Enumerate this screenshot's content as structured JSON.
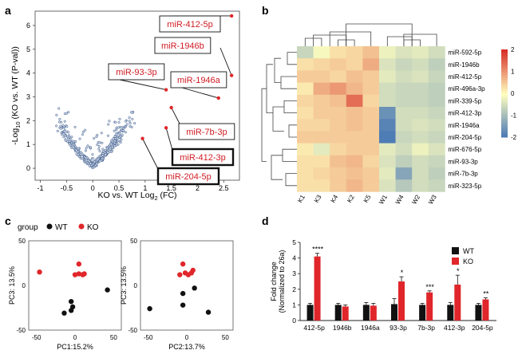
{
  "panels": {
    "a": {
      "letter": "a",
      "chart_data": {
        "type": "scatter",
        "xlabel": "KO vs. WT Log",
        "xlabel_sub": "2",
        "xlabel_suffix": " (FC)",
        "ylabel_prefix": "-Log",
        "ylabel_sub": "10",
        "ylabel_suffix": " (KO vs. WT (P-val))",
        "xlim": [
          -1.1,
          2.8
        ],
        "ylim": [
          -0.5,
          6.6
        ],
        "xticks": [
          "-1",
          "-0.5",
          "0",
          "0.5",
          "1",
          "1.5",
          "2",
          "2.5"
        ],
        "xtick_values": [
          -1,
          -0.5,
          0,
          0.5,
          1,
          1.5,
          2,
          2.5
        ],
        "yticks": [
          "0",
          "1",
          "2",
          "3",
          "4",
          "5",
          "6"
        ],
        "ytick_values": [
          0,
          1,
          2,
          3,
          4,
          5,
          6
        ],
        "highlighted": [
          {
            "label": "miR-412-5p",
            "x": 2.65,
            "y": 6.4,
            "boxed": false
          },
          {
            "label": "miR-1946b",
            "x": 2.65,
            "y": 3.9,
            "boxed": false
          },
          {
            "label": "miR-93-3p",
            "x": 1.4,
            "y": 3.3,
            "boxed": false
          },
          {
            "label": "miR-1946a",
            "x": 2.4,
            "y": 2.95,
            "boxed": false
          },
          {
            "label": "miR-7b-3p",
            "x": 1.5,
            "y": 2.55,
            "boxed": false
          },
          {
            "label": "miR-412-3p",
            "x": 1.4,
            "y": 1.7,
            "boxed": true
          },
          {
            "label": "miR-204-5p",
            "x": 0.95,
            "y": 1.25,
            "boxed": true
          }
        ]
      }
    },
    "b": {
      "letter": "b",
      "chart_data": {
        "type": "heatmap",
        "columns": [
          "K1",
          "K3",
          "K4",
          "K2",
          "K5",
          "W1",
          "W4",
          "W2",
          "W3"
        ],
        "rows": [
          "miR-592-5p",
          "miR-1946b",
          "miR-412-5p",
          "miR-496a-3p",
          "miR-339-5p",
          "miR-412-3p",
          "miR-1946a",
          "miR-204-5p",
          "miR-676-5p",
          "miR-93-3p",
          "miR-7b-3p",
          "miR-323-5p"
        ],
        "values": [
          [
            -0.6,
            -0.1,
            0.3,
            0.4,
            0.6,
            -0.2,
            -0.4,
            -0.3,
            -0.5
          ],
          [
            0.3,
            0.4,
            0.5,
            0.4,
            0.8,
            -0.4,
            -0.6,
            -0.5,
            -0.7
          ],
          [
            0.5,
            0.5,
            0.4,
            0.6,
            0.5,
            -0.3,
            -0.5,
            -0.4,
            -0.6
          ],
          [
            0.2,
            0.8,
            1.0,
            0.7,
            0.5,
            -0.5,
            -0.6,
            -0.6,
            -0.7
          ],
          [
            0.4,
            0.5,
            0.6,
            1.4,
            0.4,
            -0.5,
            -0.6,
            -0.6,
            -0.7
          ],
          [
            0.3,
            0.5,
            0.5,
            0.6,
            0.5,
            -1.6,
            -0.5,
            -0.5,
            -0.6
          ],
          [
            0.4,
            0.4,
            0.5,
            0.6,
            0.5,
            -1.8,
            -0.5,
            -0.4,
            -0.5
          ],
          [
            0.5,
            0.5,
            0.5,
            0.5,
            0.5,
            -1.9,
            -0.6,
            -0.5,
            -0.6
          ],
          [
            0.2,
            -0.3,
            0.4,
            0.5,
            0.5,
            -0.3,
            -0.5,
            -0.2,
            -0.4
          ],
          [
            0.3,
            0.3,
            0.6,
            0.7,
            0.4,
            -0.4,
            -0.7,
            -0.5,
            -0.6
          ],
          [
            0.3,
            0.4,
            0.5,
            0.6,
            0.5,
            -0.3,
            -1.3,
            -0.5,
            -0.7
          ],
          [
            0.3,
            0.3,
            0.5,
            0.7,
            0.5,
            -0.4,
            -0.8,
            -0.5,
            -0.6
          ]
        ],
        "scale_ticks": [
          "2",
          "1",
          "0",
          "-1",
          "-2"
        ],
        "scale_values": [
          2,
          1,
          0,
          -1,
          -2
        ],
        "scale_colors": {
          "high": "#d73027",
          "mid": "#ffffbf",
          "low": "#4575b4"
        }
      }
    },
    "c": {
      "letter": "c",
      "legend_title": "group",
      "legend": [
        {
          "label": "WT",
          "color": "#111111"
        },
        {
          "label": "KO",
          "color": "#e0262a"
        }
      ],
      "chart_data": [
        {
          "type": "scatter",
          "xlabel": "PC1:15.2%",
          "ylabel": "PC3: 13.5%",
          "xlim": [
            -60,
            60
          ],
          "ylim": [
            -50,
            50
          ],
          "xticks": [
            "-50",
            "0",
            "50"
          ],
          "xtick_values": [
            -50,
            0,
            50
          ],
          "yticks": [
            "50",
            "0",
            "-50"
          ],
          "ytick_values": [
            50,
            0,
            -50
          ],
          "series": [
            {
              "name": "WT",
              "points": [
                [
                  -5,
                  -28
                ],
                [
                  -14,
                  -31
                ],
                [
                  -5,
                  -18
                ],
                [
                  -3,
                  -24
                ],
                [
                  42,
                  -5
                ]
              ]
            },
            {
              "name": "KO",
              "points": [
                [
                  -46,
                  15
                ],
                [
                  5,
                  24
                ],
                [
                  0,
                  12
                ],
                [
                  5,
                  13
                ],
                [
                  10,
                  12
                ],
                [
                  12,
                  13
                ]
              ]
            }
          ]
        },
        {
          "type": "scatter",
          "xlabel": "PC2:13.7%",
          "ylabel": "PC3: 13.5%",
          "xlim": [
            -60,
            60
          ],
          "ylim": [
            -50,
            50
          ],
          "xticks": [
            "-50",
            "0",
            "50"
          ],
          "xtick_values": [
            -50,
            0,
            50
          ],
          "yticks": [
            "50",
            "0",
            "-50"
          ],
          "ytick_values": [
            50,
            0,
            -50
          ],
          "series": [
            {
              "name": "WT",
              "points": [
                [
                  -48,
                  -26
                ],
                [
                  -5,
                  -9
                ],
                [
                  10,
                  -3
                ],
                [
                  -5,
                  -22
                ],
                [
                  28,
                  -30
                ]
              ]
            },
            {
              "name": "KO",
              "points": [
                [
                  -5,
                  24
                ],
                [
                  -9,
                  12
                ],
                [
                  -2,
                  14
                ],
                [
                  2,
                  12
                ],
                [
                  6,
                  14
                ],
                [
                  8,
                  17
                ]
              ]
            }
          ]
        }
      ]
    },
    "d": {
      "letter": "d",
      "chart_data": {
        "type": "bar",
        "ylabel": "Fold change",
        "ylabel2": "(Normalized to 26a)",
        "ylim": [
          0,
          5
        ],
        "yticks": [
          "0",
          "1",
          "2",
          "3",
          "4",
          "5"
        ],
        "ytick_values": [
          0,
          1,
          2,
          3,
          4,
          5
        ],
        "categories": [
          "412-5p",
          "1946b",
          "1946a",
          "93-3p",
          "7b-3p",
          "412-3p",
          "204-5p"
        ],
        "series": [
          {
            "name": "WT",
            "color": "#111111",
            "values": [
              1.0,
              1.0,
              1.0,
              1.05,
              1.0,
              1.0,
              1.0
            ],
            "errors": [
              0.1,
              0.1,
              0.15,
              0.35,
              0.1,
              0.15,
              0.1
            ]
          },
          {
            "name": "KO",
            "color": "#e0262a",
            "values": [
              4.1,
              0.9,
              0.95,
              2.5,
              1.8,
              2.3,
              1.35
            ],
            "errors": [
              0.2,
              0.1,
              0.15,
              0.3,
              0.1,
              0.6,
              0.1
            ]
          }
        ],
        "significance": [
          "****",
          "",
          "",
          "*",
          "***",
          "*",
          "**"
        ]
      }
    }
  }
}
